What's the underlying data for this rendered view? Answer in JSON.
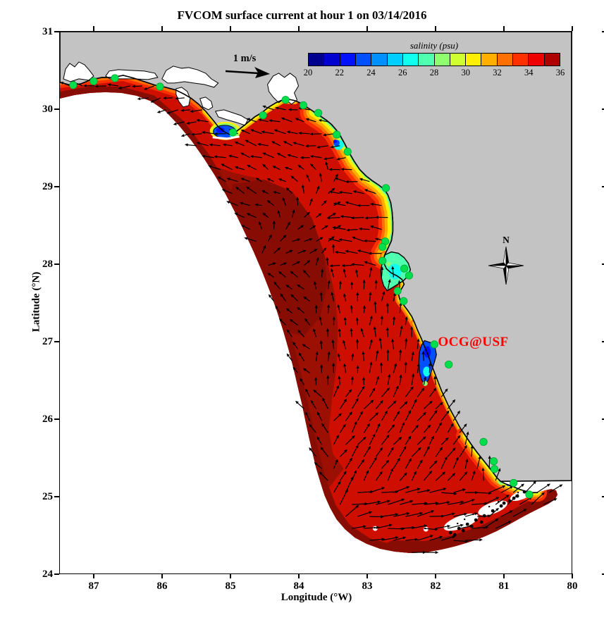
{
  "title": "FVCOM surface current at hour 1 on 03/14/2016",
  "annotations": {
    "scale_label": "1 m/s",
    "site_label": "OCG@USF",
    "site_color": "#FF0000",
    "compass_label": "N"
  },
  "map_colors": {
    "background": "#FFFFFF",
    "land": "#C3C3C3",
    "coastline": "#000000",
    "open_gulf_red": "#CE0F00",
    "shelf_maroon": "#9C0F03",
    "shelf_dark_maroon": "#870D04",
    "station_green": "#00DE4C",
    "arrow_black": "#000000"
  },
  "chart_data": {
    "type": "map",
    "title": "FVCOM surface current at hour 1 on 03/14/2016",
    "model": "FVCOM",
    "hour": 1,
    "date": "03/14/2016",
    "xlabel": "Longitude (°W)",
    "ylabel": "Latitude (°N)",
    "xticks": [
      87,
      86,
      85,
      84,
      83,
      82,
      81,
      80
    ],
    "yticks": [
      31,
      30,
      29,
      28,
      27,
      26,
      25,
      24
    ],
    "xlim_lon_w": [
      87.5,
      80
    ],
    "ylim_lat_n": [
      24,
      31
    ],
    "colorbar": {
      "label": "salinity (psu)",
      "units": "psu",
      "ticks": [
        20,
        22,
        24,
        26,
        28,
        30,
        32,
        34,
        36
      ],
      "colors": [
        "#00008F",
        "#0000CF",
        "#0010FF",
        "#0050FF",
        "#0090FF",
        "#00CFFF",
        "#10FFEF",
        "#50FFAF",
        "#8FFF6F",
        "#CFFF30",
        "#FFEF00",
        "#FFAF00",
        "#FF7000",
        "#FF3000",
        "#EF0000",
        "#AF0000"
      ]
    },
    "vector_reference": {
      "label": "1 m/s",
      "value_m_per_s": 1
    },
    "field_summary": {
      "variable": "salinity",
      "units": "psu",
      "open_gulf_psu": 35.5,
      "coastal_minimum_psu": 20,
      "pattern": "high salinity 35-36 psu over the open West Florida Shelf; fresher 20-30 psu water confined to the coast at river mouths and estuaries (Apalachicola Bay, Suwannee River, Tampa Bay, Charlotte Harbor, Florida Bay)"
    },
    "current_summary": "westward flow along the Panhandle and Big Bend coast, weak variable mid-shelf flow, northward flow along the southwest Florida coast, strong east-northeastward jet along the open southern boundary and past the Florida Keys",
    "stations_lon_lat": [
      [
        87.3,
        30.31
      ],
      [
        87.0,
        30.36
      ],
      [
        86.69,
        30.4
      ],
      [
        86.03,
        30.29
      ],
      [
        84.96,
        29.7
      ],
      [
        84.52,
        29.92
      ],
      [
        84.19,
        30.12
      ],
      [
        83.93,
        30.05
      ],
      [
        83.71,
        29.95
      ],
      [
        83.44,
        29.67
      ],
      [
        83.28,
        29.45
      ],
      [
        82.72,
        28.98
      ],
      [
        82.73,
        28.29
      ],
      [
        82.77,
        28.22
      ],
      [
        82.77,
        28.04
      ],
      [
        82.45,
        27.94
      ],
      [
        82.38,
        27.85
      ],
      [
        82.55,
        27.65
      ],
      [
        82.46,
        27.52
      ],
      [
        82.01,
        26.96
      ],
      [
        81.8,
        26.7
      ],
      [
        81.29,
        25.7
      ],
      [
        81.14,
        25.45
      ],
      [
        81.13,
        25.35
      ],
      [
        80.85,
        25.17
      ],
      [
        80.62,
        25.02
      ]
    ]
  }
}
